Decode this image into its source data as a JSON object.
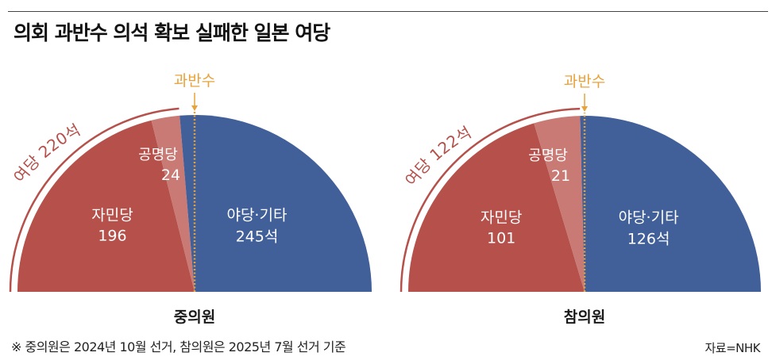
{
  "title": "의회 과반수 의석 확보 실패한 일본 여당",
  "note": "※ 중의원은 2024년 10월 선거, 참의원은 2025년 7월 선거 기준",
  "source": "자료=NHK",
  "colors": {
    "ruling": "#b5504b",
    "partner": "#c97a74",
    "opposition": "#415f98",
    "majority_line": "#e8a23a"
  },
  "chart_data": [
    {
      "type": "pie",
      "name": "중의원",
      "majority_label": "과반수",
      "ruling_total_label": "여당 220석",
      "segments": [
        {
          "label": "자민당",
          "value": 196,
          "value_label": "196"
        },
        {
          "label": "공명당",
          "value": 24,
          "value_label": "24"
        },
        {
          "label": "야당·기타",
          "value": 245,
          "value_label": "245석"
        }
      ]
    },
    {
      "type": "pie",
      "name": "참의원",
      "majority_label": "과반수",
      "ruling_total_label": "여당 122석",
      "segments": [
        {
          "label": "자민당",
          "value": 101,
          "value_label": "101"
        },
        {
          "label": "공명당",
          "value": 21,
          "value_label": "21"
        },
        {
          "label": "야당·기타",
          "value": 126,
          "value_label": "126석"
        }
      ]
    }
  ]
}
